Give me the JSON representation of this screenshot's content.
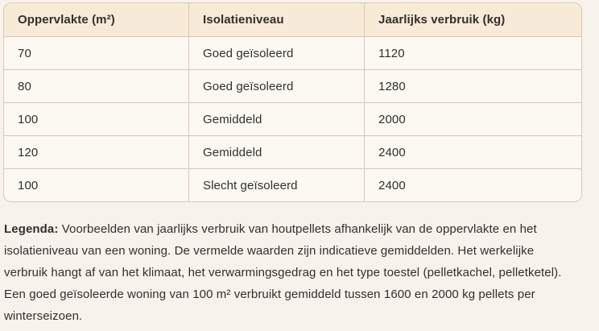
{
  "table": {
    "columns": [
      "Oppervlakte (m²)",
      "Isolatieniveau",
      "Jaarlijks verbruik (kg)"
    ],
    "rows": [
      [
        "70",
        "Goed geïsoleerd",
        "1120"
      ],
      [
        "80",
        "Goed geïsoleerd",
        "1280"
      ],
      [
        "100",
        "Gemiddeld",
        "2000"
      ],
      [
        "120",
        "Gemiddeld",
        "2400"
      ],
      [
        "100",
        "Slecht geïsoleerd",
        "2400"
      ]
    ]
  },
  "legend": {
    "label": "Legenda:",
    "text": " Voorbeelden van jaarlijks verbruik van houtpellets afhankelijk van de oppervlakte en het isolatieniveau van een woning. De vermelde waarden zijn indicatieve gemiddelden. Het werkelijke verbruik hangt af van het klimaat, het verwarmingsgedrag en het type toestel (pelletkachel, pelletketel). Een goed geïsoleerde woning van 100 m² verbruikt gemiddeld tussen 1600 en 2000 kg pellets per winterseizoen."
  },
  "colors": {
    "page_bg": "#f7f2ec",
    "table_bg": "#fcf8f2",
    "header_bg": "#f8ead9",
    "border": "#ddc7b0",
    "text": "#332f2b"
  }
}
